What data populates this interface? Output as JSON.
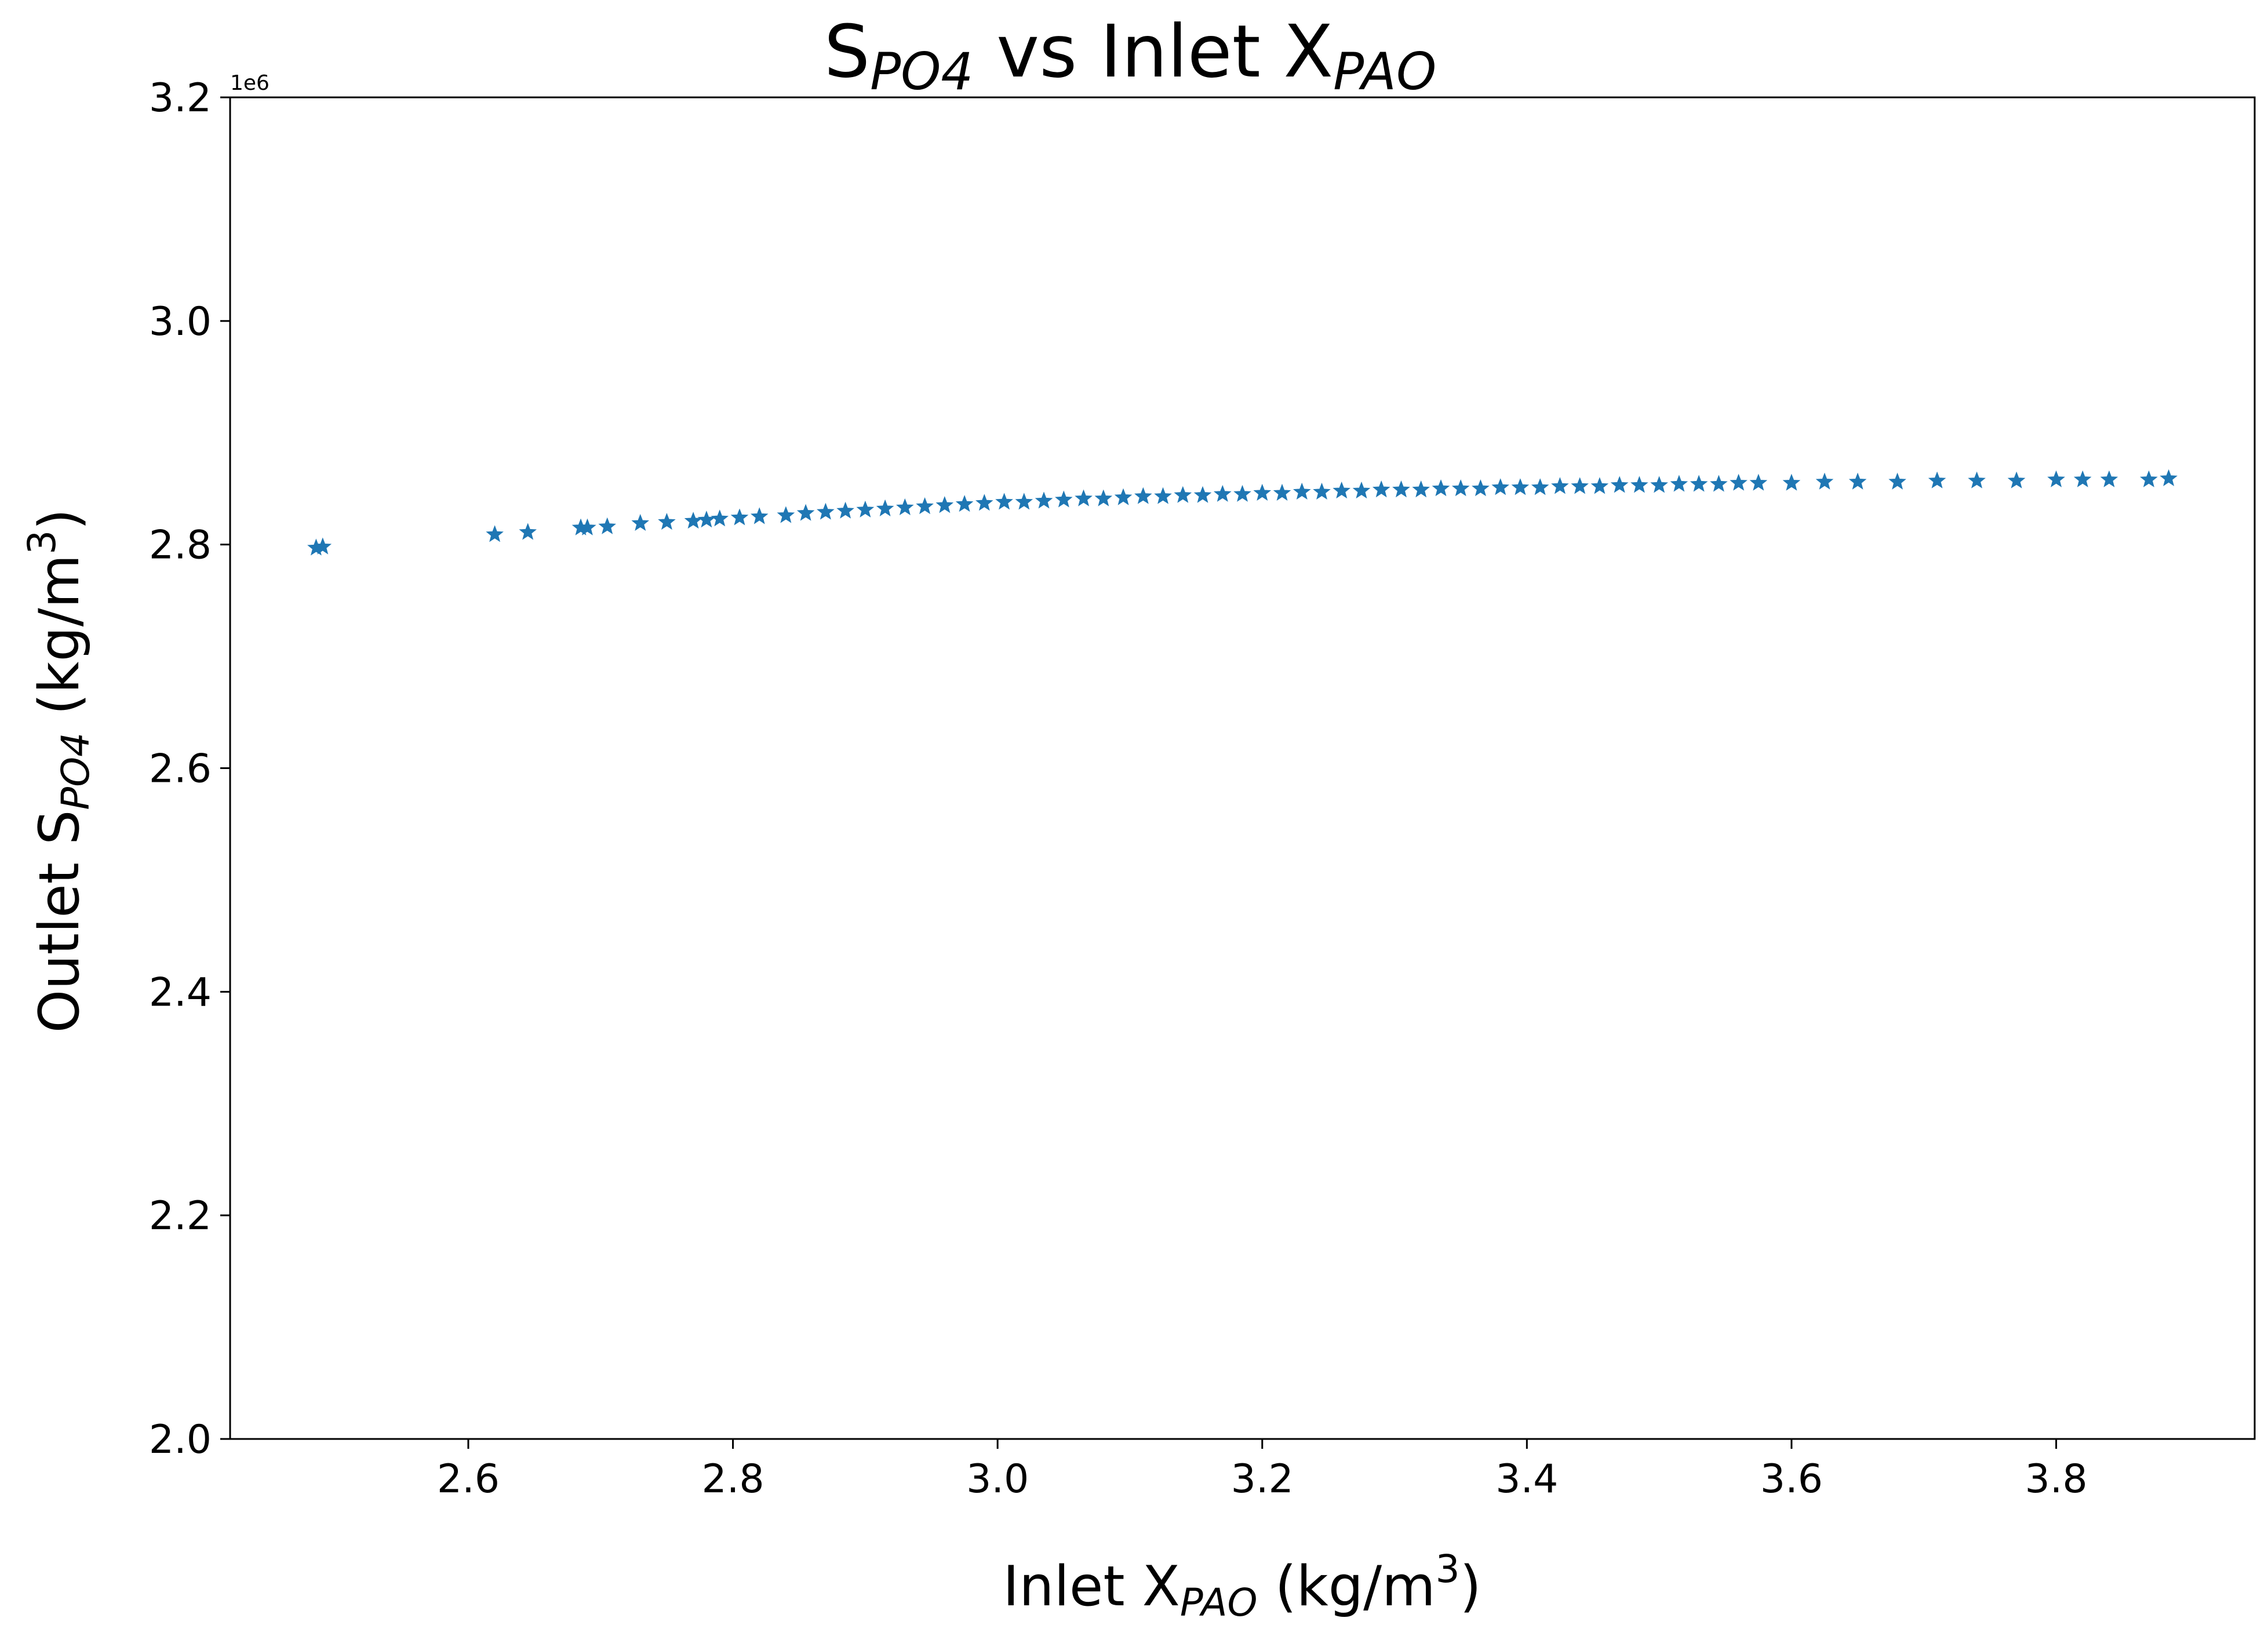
{
  "chart_data": {
    "type": "scatter",
    "marker": "star",
    "color": "#1f77b4",
    "title": {
      "main_a": "S",
      "sub_a": "PO4",
      "main_b": " vs Inlet X",
      "sub_b": "PAO"
    },
    "xlabel": {
      "main": "Inlet X",
      "sub": "PAO",
      "unit_a": " (kg/m",
      "sup": "3",
      "unit_b": ")"
    },
    "ylabel": {
      "main": "Outlet S",
      "sub": "PO4",
      "unit_a": " (kg/m",
      "sup": "3",
      "unit_b": ")"
    },
    "y_offset_label": "1e6",
    "xlim": [
      2.42,
      3.95
    ],
    "ylim": [
      2.0,
      3.2
    ],
    "x_ticks": [
      2.6,
      2.8,
      3.0,
      3.2,
      3.4,
      3.6,
      3.8
    ],
    "x_tick_labels": [
      "2.6",
      "2.8",
      "3.0",
      "3.2",
      "3.4",
      "3.6",
      "3.8"
    ],
    "y_ticks": [
      2.0,
      2.2,
      2.4,
      2.6,
      2.8,
      3.0,
      3.2
    ],
    "y_tick_labels": [
      "2.0",
      "2.2",
      "2.4",
      "2.6",
      "2.8",
      "3.0",
      "3.2"
    ],
    "grid": false,
    "legend": "none",
    "points": [
      [
        2.485,
        2.797
      ],
      [
        2.49,
        2.798
      ],
      [
        2.62,
        2.809
      ],
      [
        2.645,
        2.811
      ],
      [
        2.685,
        2.815
      ],
      [
        2.69,
        2.815
      ],
      [
        2.705,
        2.816
      ],
      [
        2.73,
        2.819
      ],
      [
        2.75,
        2.82
      ],
      [
        2.77,
        2.821
      ],
      [
        2.78,
        2.822
      ],
      [
        2.79,
        2.823
      ],
      [
        2.805,
        2.824
      ],
      [
        2.82,
        2.825
      ],
      [
        2.84,
        2.826
      ],
      [
        2.855,
        2.828
      ],
      [
        2.87,
        2.829
      ],
      [
        2.885,
        2.83
      ],
      [
        2.9,
        2.831
      ],
      [
        2.915,
        2.832
      ],
      [
        2.93,
        2.833
      ],
      [
        2.945,
        2.834
      ],
      [
        2.96,
        2.835
      ],
      [
        2.975,
        2.836
      ],
      [
        2.99,
        2.837
      ],
      [
        3.005,
        2.838
      ],
      [
        3.02,
        2.838
      ],
      [
        3.035,
        2.839
      ],
      [
        3.05,
        2.84
      ],
      [
        3.065,
        2.841
      ],
      [
        3.08,
        2.841
      ],
      [
        3.095,
        2.842
      ],
      [
        3.11,
        2.843
      ],
      [
        3.125,
        2.843
      ],
      [
        3.14,
        2.844
      ],
      [
        3.155,
        2.844
      ],
      [
        3.17,
        2.845
      ],
      [
        3.185,
        2.845
      ],
      [
        3.2,
        2.846
      ],
      [
        3.215,
        2.846
      ],
      [
        3.23,
        2.847
      ],
      [
        3.245,
        2.847
      ],
      [
        3.26,
        2.848
      ],
      [
        3.275,
        2.848
      ],
      [
        3.29,
        2.849
      ],
      [
        3.305,
        2.849
      ],
      [
        3.32,
        2.849
      ],
      [
        3.335,
        2.85
      ],
      [
        3.35,
        2.85
      ],
      [
        3.365,
        2.85
      ],
      [
        3.38,
        2.851
      ],
      [
        3.395,
        2.851
      ],
      [
        3.41,
        2.851
      ],
      [
        3.425,
        2.852
      ],
      [
        3.44,
        2.852
      ],
      [
        3.455,
        2.852
      ],
      [
        3.47,
        2.853
      ],
      [
        3.485,
        2.853
      ],
      [
        3.5,
        2.853
      ],
      [
        3.515,
        2.854
      ],
      [
        3.53,
        2.854
      ],
      [
        3.545,
        2.854
      ],
      [
        3.56,
        2.855
      ],
      [
        3.575,
        2.855
      ],
      [
        3.6,
        2.855
      ],
      [
        3.625,
        2.856
      ],
      [
        3.65,
        2.856
      ],
      [
        3.68,
        2.856
      ],
      [
        3.71,
        2.857
      ],
      [
        3.74,
        2.857
      ],
      [
        3.77,
        2.857
      ],
      [
        3.8,
        2.858
      ],
      [
        3.82,
        2.858
      ],
      [
        3.84,
        2.858
      ],
      [
        3.87,
        2.858
      ],
      [
        3.885,
        2.859
      ]
    ]
  }
}
